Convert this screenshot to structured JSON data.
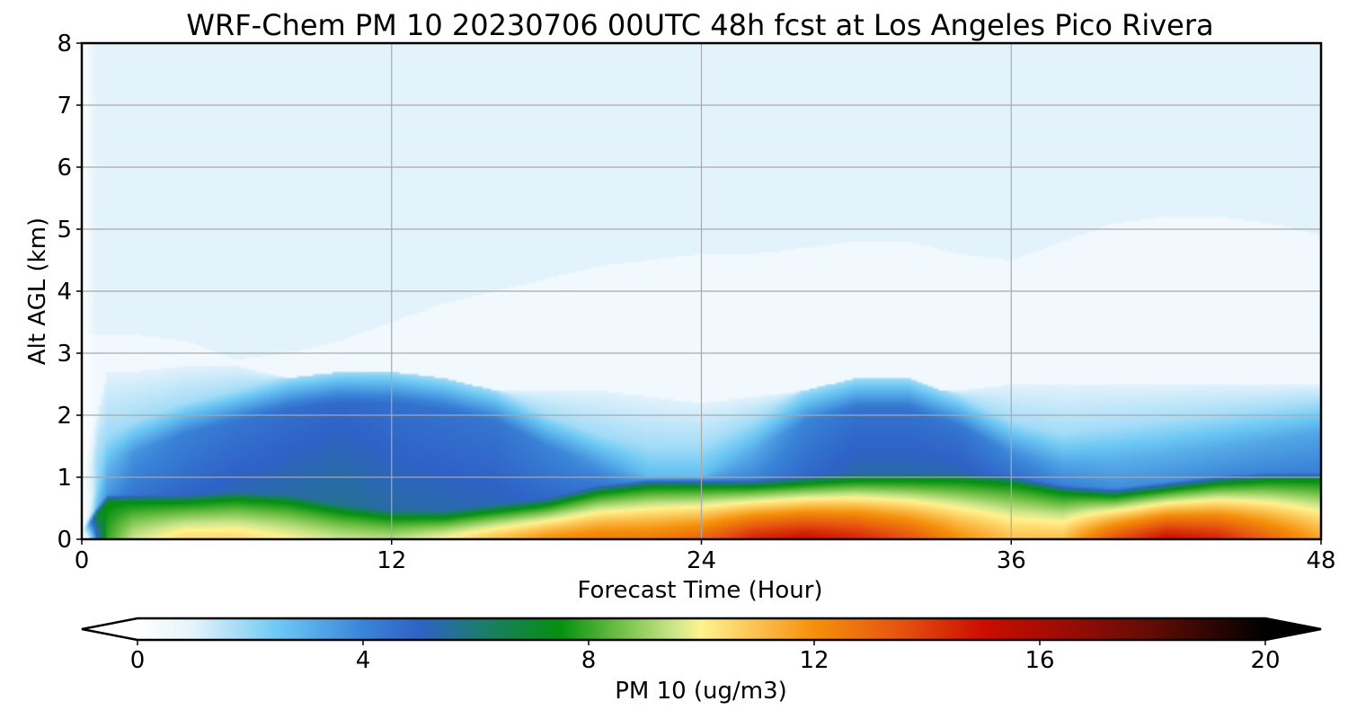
{
  "chart_data": {
    "type": "heatmap",
    "title": "WRF-Chem PM 10  20230706 00UTC 48h fcst at Los Angeles Pico Rivera",
    "xlabel": "Forecast Time (Hour)",
    "ylabel": "Alt AGL (km)",
    "xlim": [
      0,
      48
    ],
    "ylim": [
      0,
      8
    ],
    "x_ticks": [
      0,
      12,
      24,
      36,
      48
    ],
    "y_ticks": [
      0,
      1,
      2,
      3,
      4,
      5,
      6,
      7,
      8
    ],
    "grid": true,
    "colorbar": {
      "label": "PM 10  (ug/m3)",
      "range": [
        0,
        20
      ],
      "ticks": [
        0,
        4,
        8,
        12,
        16,
        20
      ],
      "extend": "both",
      "stops": [
        {
          "v": 0,
          "c": "#ffffff"
        },
        {
          "v": 1,
          "c": "#e3f3fc"
        },
        {
          "v": 2.5,
          "c": "#6cc8f4"
        },
        {
          "v": 4,
          "c": "#3a84d8"
        },
        {
          "v": 5,
          "c": "#2f62c6"
        },
        {
          "v": 6,
          "c": "#1d7a74"
        },
        {
          "v": 7.5,
          "c": "#059010"
        },
        {
          "v": 8.5,
          "c": "#6abd42"
        },
        {
          "v": 9.5,
          "c": "#cbe58a"
        },
        {
          "v": 10,
          "c": "#fff38e"
        },
        {
          "v": 11,
          "c": "#fcc04e"
        },
        {
          "v": 12,
          "c": "#f5900a"
        },
        {
          "v": 13.5,
          "c": "#e65410"
        },
        {
          "v": 15,
          "c": "#cc0d00"
        },
        {
          "v": 16.5,
          "c": "#9a0c04"
        },
        {
          "v": 18,
          "c": "#600c04"
        },
        {
          "v": 20,
          "c": "#000000"
        }
      ]
    },
    "description_of_field": {
      "hours": [
        0,
        1,
        2,
        4,
        6,
        8,
        10,
        12,
        14,
        16,
        18,
        20,
        22,
        24,
        26,
        28,
        30,
        32,
        34,
        36,
        38,
        40,
        42,
        44,
        46,
        48
      ],
      "surface_pm10": [
        0.5,
        8.0,
        9.5,
        10.5,
        10.5,
        10.0,
        9.5,
        9.3,
        10.0,
        11.0,
        12.0,
        12.5,
        12.5,
        13.0,
        14.5,
        15.0,
        14.5,
        13.5,
        12.0,
        11.0,
        11.0,
        13.5,
        15.0,
        14.5,
        13.0,
        11.5
      ],
      "mixed_layer_top_km": [
        0.1,
        0.6,
        0.6,
        0.6,
        0.65,
        0.6,
        0.45,
        0.35,
        0.35,
        0.45,
        0.55,
        0.75,
        0.85,
        0.85,
        0.85,
        0.9,
        0.95,
        0.95,
        0.95,
        0.9,
        0.75,
        0.7,
        0.8,
        0.9,
        0.95,
        0.95
      ],
      "blue_layer_top_km": [
        0.3,
        1.2,
        1.4,
        1.7,
        1.9,
        2.1,
        2.2,
        2.2,
        2.1,
        1.9,
        1.5,
        1.2,
        1.0,
        1.0,
        1.4,
        1.9,
        2.1,
        2.1,
        1.8,
        1.4,
        1.2,
        1.3,
        1.4,
        1.5,
        1.6,
        1.7
      ],
      "blue_layer_core_pm10": [
        1.0,
        3.0,
        3.8,
        4.3,
        4.6,
        4.8,
        5.0,
        4.8,
        4.7,
        4.6,
        4.2,
        3.8,
        3.0,
        3.0,
        3.4,
        4.2,
        4.7,
        4.7,
        4.6,
        4.0,
        3.5,
        3.2,
        3.2,
        3.3,
        3.4,
        3.5
      ],
      "residual_top_km": [
        1.0,
        2.7,
        2.7,
        2.8,
        2.8,
        2.6,
        2.5,
        2.5,
        2.5,
        2.4,
        2.4,
        2.4,
        2.3,
        2.2,
        2.3,
        2.4,
        2.4,
        2.4,
        2.4,
        2.5,
        2.5,
        2.5,
        2.5,
        2.5,
        2.5,
        2.5
      ],
      "clean_top_km": [
        3.3,
        3.3,
        3.3,
        3.2,
        2.9,
        3.0,
        3.2,
        3.5,
        3.8,
        4.0,
        4.2,
        4.4,
        4.5,
        4.6,
        4.6,
        4.7,
        4.8,
        4.8,
        4.6,
        4.5,
        4.8,
        5.1,
        5.2,
        5.2,
        5.1,
        4.9
      ]
    }
  }
}
